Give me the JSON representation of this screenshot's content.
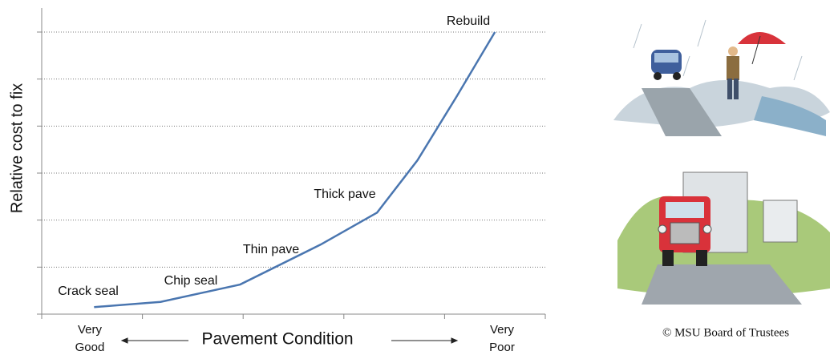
{
  "chart_data": {
    "type": "line",
    "y_label": "Relative cost to fix",
    "x_label": "Pavement Condition",
    "x_left_label": [
      "Very",
      "Good"
    ],
    "x_right_label": [
      "Very",
      "Poor"
    ],
    "x": [
      0.52,
      1.18,
      1.97,
      2.77,
      3.33,
      3.73,
      4.12,
      4.5
    ],
    "values": [
      0.15,
      0.26,
      0.63,
      1.48,
      2.16,
      3.27,
      4.63,
      6.0
    ],
    "color": "#4a76b0",
    "xlim": [
      0,
      5
    ],
    "xticks": [
      0,
      1,
      2,
      3,
      4,
      5
    ],
    "ylim": [
      0,
      6
    ],
    "yticks": [
      0,
      1,
      2,
      3,
      4,
      5,
      6
    ],
    "grid": true,
    "annotations": [
      "Crack seal",
      "Chip seal",
      "Thin pave",
      "Thick pave",
      "Rebuild"
    ]
  },
  "credit": "© MSU Board of Trustees"
}
